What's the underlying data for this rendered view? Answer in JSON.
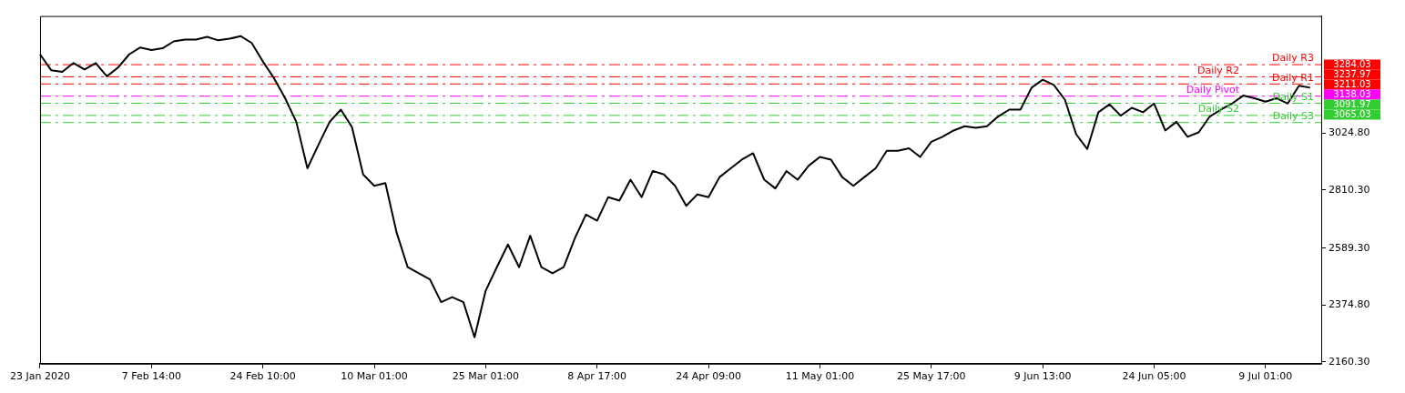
{
  "chart_data": {
    "type": "line",
    "categories": [
      "23 Jan 2020",
      null,
      null,
      null,
      null,
      null,
      null,
      null,
      null,
      null,
      "7 Feb 14:00",
      null,
      null,
      null,
      null,
      null,
      null,
      null,
      null,
      null,
      "24 Feb 10:00",
      null,
      null,
      null,
      null,
      null,
      null,
      null,
      null,
      null,
      "10 Mar 01:00",
      null,
      null,
      null,
      null,
      null,
      null,
      null,
      null,
      null,
      "25 Mar 01:00",
      null,
      null,
      null,
      null,
      null,
      null,
      null,
      null,
      null,
      "8 Apr 17:00",
      null,
      null,
      null,
      null,
      null,
      null,
      null,
      null,
      null,
      "24 Apr 09:00",
      null,
      null,
      null,
      null,
      null,
      null,
      null,
      null,
      null,
      "11 May 01:00",
      null,
      null,
      null,
      null,
      null,
      null,
      null,
      null,
      null,
      "25 May 17:00",
      null,
      null,
      null,
      null,
      null,
      null,
      null,
      null,
      null,
      "9 Jun 13:00",
      null,
      null,
      null,
      null,
      null,
      null,
      null,
      null,
      null,
      "24 Jun 05:00",
      null,
      null,
      null,
      null,
      null,
      null,
      null,
      null,
      null,
      "9 Jul 01:00",
      null,
      null,
      null,
      null,
      null
    ],
    "series": [
      {
        "color": "#000000",
        "values": [
          3323,
          3263,
          3257,
          3290,
          3266,
          3290,
          3240,
          3273,
          3323,
          3349,
          3339,
          3346,
          3372,
          3379,
          3379,
          3389,
          3376,
          3382,
          3392,
          3366,
          3296,
          3233,
          3157,
          3068,
          2892,
          2982,
          3068,
          3114,
          3048,
          2869,
          2826,
          2836,
          2650,
          2518,
          2495,
          2472,
          2386,
          2405,
          2386,
          2253,
          2429,
          2518,
          2604,
          2518,
          2637,
          2518,
          2495,
          2518,
          2627,
          2717,
          2694,
          2783,
          2770,
          2849,
          2783,
          2882,
          2869,
          2826,
          2750,
          2793,
          2783,
          2859,
          2892,
          2925,
          2949,
          2849,
          2816,
          2882,
          2849,
          2902,
          2935,
          2925,
          2859,
          2826,
          2859,
          2892,
          2958,
          2958,
          2968,
          2935,
          2992,
          3011,
          3035,
          3051,
          3045,
          3051,
          3088,
          3114,
          3114,
          3197,
          3227,
          3207,
          3151,
          3021,
          2965,
          3104,
          3134,
          3091,
          3121,
          3104,
          3137,
          3035,
          3068,
          3011,
          3028,
          3088,
          3114,
          3137,
          3167,
          3157,
          3144,
          3157,
          3137,
          3204,
          3197,
          null
        ]
      }
    ],
    "ylim": [
      2153,
      3468
    ],
    "yticks": [
      {
        "value": 2160.3,
        "label": "2160.30"
      },
      {
        "value": 2374.8,
        "label": "2374.80"
      },
      {
        "value": 2589.3,
        "label": "2589.30"
      },
      {
        "value": 2810.3,
        "label": "2810.30"
      },
      {
        "value": 3024.8,
        "label": "3024.80"
      }
    ],
    "ref_lines": [
      {
        "axis": "y",
        "value": 3284.03,
        "label": "Daily R3",
        "color": "#ff0000",
        "line_style": "dashed"
      },
      {
        "axis": "y",
        "value": 3237.97,
        "label": "Daily R2",
        "color": "#ff0000",
        "line_style": "dashed"
      },
      {
        "axis": "y",
        "value": 3211.03,
        "label": "Daily R1",
        "color": "#ff0000",
        "line_style": "dashed"
      },
      {
        "axis": "y",
        "value": 3164.97,
        "label": "Daily Pivot",
        "color": "#ff00ff",
        "line_style": "dashed"
      },
      {
        "axis": "y",
        "value": 3138.03,
        "label": "Daily S1",
        "color": "#32cd32",
        "line_style": "dashed"
      },
      {
        "axis": "y",
        "value": 3091.97,
        "label": "Daily S2",
        "color": "#32cd32",
        "line_style": "dashed"
      },
      {
        "axis": "y",
        "value": 3065.03,
        "label": "Daily S3",
        "color": "#32cd32",
        "line_style": "dashed"
      }
    ],
    "annotations": [
      "3284.03",
      "3237.97",
      "3211.03",
      "3138.03",
      "3091.97",
      "3065.03"
    ],
    "legend": false,
    "grid": false
  }
}
